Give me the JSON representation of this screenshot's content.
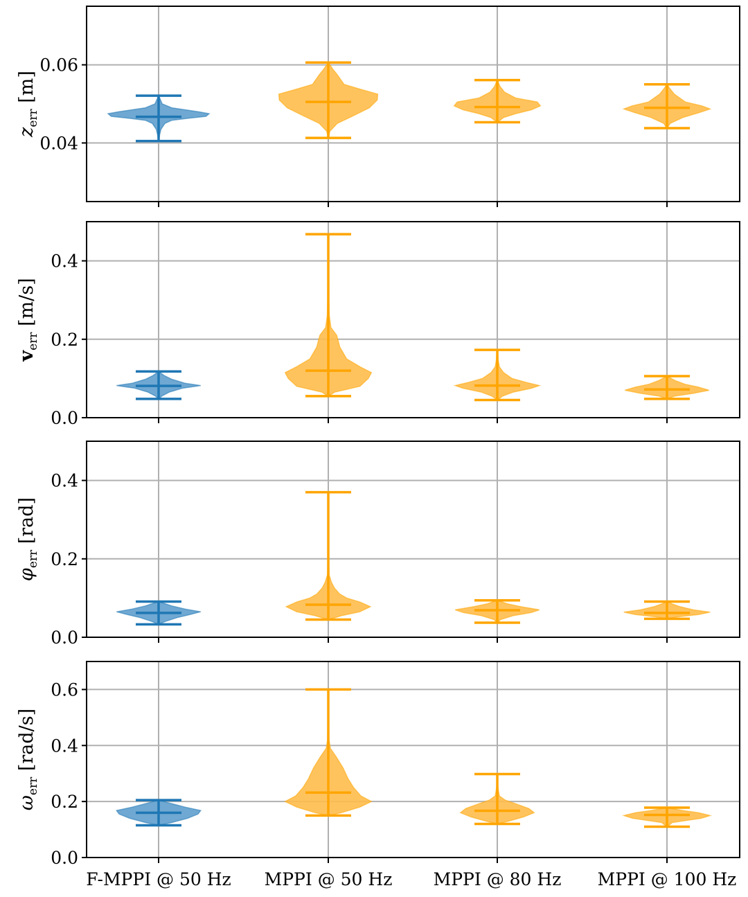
{
  "colors": {
    "fmppi": "#1f77b4",
    "fmppi_fill": "#5f9fcd",
    "mppi": "#ffa500",
    "mppi_fill": "#ffbd4d",
    "grid": "#b0b0b0",
    "axis": "#000000"
  },
  "chart_data": [
    {
      "type": "violin",
      "ylabel": "z_err [m]",
      "ylabel_main": "z",
      "ylabel_sub": "err",
      "ylabel_unit": "[m]",
      "ylabel_style": "italic",
      "ylim": [
        0.025,
        0.075
      ],
      "yticks": [
        0.04,
        0.06
      ],
      "ytick_labels": [
        "0.04",
        "0.06"
      ],
      "grid": true,
      "categories": [
        "F-MPPI @ 50 Hz",
        "MPPI @ 50 Hz",
        "MPPI @ 80 Hz",
        "MPPI @ 100 Hz"
      ],
      "series": [
        {
          "min": 0.0405,
          "mean": 0.0467,
          "max": 0.0521,
          "color": "fmppi",
          "profile": [
            [
              0.0405,
              0.004
            ],
            [
              0.042,
              0.018
            ],
            [
              0.0435,
              0.045
            ],
            [
              0.045,
              0.12
            ],
            [
              0.0458,
              0.25
            ],
            [
              0.0463,
              0.55
            ],
            [
              0.0468,
              0.9
            ],
            [
              0.0475,
              0.96
            ],
            [
              0.048,
              0.75
            ],
            [
              0.049,
              0.25
            ],
            [
              0.05,
              0.07
            ],
            [
              0.0512,
              0.03
            ],
            [
              0.0521,
              0.004
            ]
          ]
        },
        {
          "min": 0.0413,
          "mean": 0.0505,
          "max": 0.0606,
          "color": "mppi",
          "profile": [
            [
              0.0413,
              0.004
            ],
            [
              0.043,
              0.03
            ],
            [
              0.045,
              0.17
            ],
            [
              0.047,
              0.48
            ],
            [
              0.049,
              0.78
            ],
            [
              0.051,
              0.93
            ],
            [
              0.0525,
              0.94
            ],
            [
              0.0538,
              0.6
            ],
            [
              0.055,
              0.3
            ],
            [
              0.0575,
              0.17
            ],
            [
              0.059,
              0.08
            ],
            [
              0.0606,
              0.004
            ]
          ]
        },
        {
          "min": 0.0453,
          "mean": 0.0492,
          "max": 0.0561,
          "color": "mppi",
          "profile": [
            [
              0.0453,
              0.004
            ],
            [
              0.0465,
              0.12
            ],
            [
              0.0475,
              0.35
            ],
            [
              0.0485,
              0.65
            ],
            [
              0.0495,
              0.82
            ],
            [
              0.0505,
              0.76
            ],
            [
              0.0515,
              0.35
            ],
            [
              0.053,
              0.14
            ],
            [
              0.0545,
              0.05
            ],
            [
              0.0561,
              0.004
            ]
          ]
        },
        {
          "min": 0.0438,
          "mean": 0.049,
          "max": 0.055,
          "color": "mppi",
          "profile": [
            [
              0.0438,
              0.004
            ],
            [
              0.045,
              0.06
            ],
            [
              0.0465,
              0.3
            ],
            [
              0.0478,
              0.62
            ],
            [
              0.0487,
              0.82
            ],
            [
              0.0495,
              0.66
            ],
            [
              0.0505,
              0.35
            ],
            [
              0.0525,
              0.14
            ],
            [
              0.054,
              0.05
            ],
            [
              0.055,
              0.004
            ]
          ]
        }
      ]
    },
    {
      "type": "violin",
      "ylabel": "v_err [m/s]",
      "ylabel_main": "v",
      "ylabel_sub": "err",
      "ylabel_unit": "[m/s]",
      "ylabel_style": "bold",
      "ylim": [
        0.0,
        0.5
      ],
      "yticks": [
        0.0,
        0.2,
        0.4
      ],
      "ytick_labels": [
        "0.0",
        "0.2",
        "0.4"
      ],
      "grid": true,
      "categories": [
        "F-MPPI @ 50 Hz",
        "MPPI @ 50 Hz",
        "MPPI @ 80 Hz",
        "MPPI @ 100 Hz"
      ],
      "series": [
        {
          "min": 0.048,
          "mean": 0.081,
          "max": 0.118,
          "color": "fmppi",
          "profile": [
            [
              0.048,
              0.004
            ],
            [
              0.055,
              0.06
            ],
            [
              0.065,
              0.2
            ],
            [
              0.075,
              0.45
            ],
            [
              0.082,
              0.8
            ],
            [
              0.088,
              0.5
            ],
            [
              0.098,
              0.25
            ],
            [
              0.108,
              0.1
            ],
            [
              0.118,
              0.004
            ]
          ]
        },
        {
          "min": 0.055,
          "mean": 0.12,
          "max": 0.468,
          "color": "mppi",
          "profile": [
            [
              0.055,
              0.004
            ],
            [
              0.065,
              0.12
            ],
            [
              0.08,
              0.6
            ],
            [
              0.1,
              0.76
            ],
            [
              0.115,
              0.82
            ],
            [
              0.13,
              0.6
            ],
            [
              0.15,
              0.35
            ],
            [
              0.18,
              0.22
            ],
            [
              0.21,
              0.16
            ],
            [
              0.23,
              0.05
            ],
            [
              0.26,
              0.02
            ],
            [
              0.3,
              0.012
            ],
            [
              0.4,
              0.008
            ],
            [
              0.468,
              0.004
            ]
          ]
        },
        {
          "min": 0.045,
          "mean": 0.082,
          "max": 0.173,
          "color": "mppi",
          "profile": [
            [
              0.045,
              0.004
            ],
            [
              0.055,
              0.1
            ],
            [
              0.065,
              0.3
            ],
            [
              0.075,
              0.65
            ],
            [
              0.082,
              0.8
            ],
            [
              0.09,
              0.55
            ],
            [
              0.1,
              0.28
            ],
            [
              0.115,
              0.12
            ],
            [
              0.13,
              0.04
            ],
            [
              0.15,
              0.015
            ],
            [
              0.173,
              0.004
            ]
          ]
        },
        {
          "min": 0.048,
          "mean": 0.072,
          "max": 0.106,
          "color": "mppi",
          "profile": [
            [
              0.048,
              0.004
            ],
            [
              0.055,
              0.15
            ],
            [
              0.062,
              0.5
            ],
            [
              0.07,
              0.8
            ],
            [
              0.078,
              0.6
            ],
            [
              0.085,
              0.35
            ],
            [
              0.095,
              0.15
            ],
            [
              0.106,
              0.004
            ]
          ]
        }
      ]
    },
    {
      "type": "violin",
      "ylabel": "φ_err [rad]",
      "ylabel_main": "φ",
      "ylabel_sub": "err",
      "ylabel_unit": "[rad]",
      "ylabel_style": "italic",
      "ylim": [
        0.0,
        0.5
      ],
      "yticks": [
        0.0,
        0.2,
        0.4
      ],
      "ytick_labels": [
        "0.0",
        "0.2",
        "0.4"
      ],
      "grid": true,
      "categories": [
        "F-MPPI @ 50 Hz",
        "MPPI @ 50 Hz",
        "MPPI @ 80 Hz",
        "MPPI @ 100 Hz"
      ],
      "series": [
        {
          "min": 0.033,
          "mean": 0.062,
          "max": 0.091,
          "color": "fmppi",
          "profile": [
            [
              0.033,
              0.004
            ],
            [
              0.04,
              0.12
            ],
            [
              0.05,
              0.35
            ],
            [
              0.058,
              0.6
            ],
            [
              0.065,
              0.8
            ],
            [
              0.072,
              0.5
            ],
            [
              0.08,
              0.25
            ],
            [
              0.091,
              0.004
            ]
          ]
        },
        {
          "min": 0.045,
          "mean": 0.083,
          "max": 0.37,
          "color": "mppi",
          "profile": [
            [
              0.045,
              0.004
            ],
            [
              0.055,
              0.25
            ],
            [
              0.065,
              0.6
            ],
            [
              0.078,
              0.8
            ],
            [
              0.09,
              0.6
            ],
            [
              0.1,
              0.35
            ],
            [
              0.11,
              0.22
            ],
            [
              0.125,
              0.12
            ],
            [
              0.14,
              0.06
            ],
            [
              0.16,
              0.015
            ],
            [
              0.2,
              0.008
            ],
            [
              0.3,
              0.006
            ],
            [
              0.37,
              0.004
            ]
          ]
        },
        {
          "min": 0.037,
          "mean": 0.069,
          "max": 0.094,
          "color": "mppi",
          "profile": [
            [
              0.037,
              0.004
            ],
            [
              0.045,
              0.06
            ],
            [
              0.055,
              0.3
            ],
            [
              0.063,
              0.65
            ],
            [
              0.07,
              0.8
            ],
            [
              0.078,
              0.45
            ],
            [
              0.085,
              0.2
            ],
            [
              0.094,
              0.004
            ]
          ]
        },
        {
          "min": 0.047,
          "mean": 0.062,
          "max": 0.091,
          "color": "mppi",
          "profile": [
            [
              0.047,
              0.004
            ],
            [
              0.052,
              0.2
            ],
            [
              0.058,
              0.6
            ],
            [
              0.064,
              0.82
            ],
            [
              0.07,
              0.5
            ],
            [
              0.078,
              0.25
            ],
            [
              0.085,
              0.1
            ],
            [
              0.091,
              0.004
            ]
          ]
        }
      ]
    },
    {
      "type": "violin",
      "ylabel": "ω_err [rad/s]",
      "ylabel_main": "ω",
      "ylabel_sub": "err",
      "ylabel_unit": "[rad/s]",
      "ylabel_style": "italic",
      "ylim": [
        0.0,
        0.7
      ],
      "yticks": [
        0.0,
        0.2,
        0.4,
        0.6
      ],
      "ytick_labels": [
        "0.0",
        "0.2",
        "0.4",
        "0.6"
      ],
      "grid": true,
      "categories": [
        "F-MPPI @ 50 Hz",
        "MPPI @ 50 Hz",
        "MPPI @ 80 Hz",
        "MPPI @ 100 Hz"
      ],
      "series": [
        {
          "min": 0.115,
          "mean": 0.16,
          "max": 0.205,
          "color": "fmppi",
          "profile": [
            [
              0.115,
              0.004
            ],
            [
              0.125,
              0.25
            ],
            [
              0.14,
              0.55
            ],
            [
              0.155,
              0.75
            ],
            [
              0.168,
              0.8
            ],
            [
              0.18,
              0.5
            ],
            [
              0.195,
              0.2
            ],
            [
              0.205,
              0.004
            ]
          ]
        },
        {
          "min": 0.15,
          "mean": 0.232,
          "max": 0.6,
          "color": "mppi",
          "profile": [
            [
              0.15,
              0.004
            ],
            [
              0.16,
              0.25
            ],
            [
              0.18,
              0.6
            ],
            [
              0.2,
              0.82
            ],
            [
              0.22,
              0.62
            ],
            [
              0.25,
              0.48
            ],
            [
              0.28,
              0.38
            ],
            [
              0.32,
              0.28
            ],
            [
              0.36,
              0.15
            ],
            [
              0.39,
              0.04
            ],
            [
              0.42,
              0.015
            ],
            [
              0.5,
              0.008
            ],
            [
              0.6,
              0.004
            ]
          ]
        },
        {
          "min": 0.12,
          "mean": 0.167,
          "max": 0.298,
          "color": "mppi",
          "profile": [
            [
              0.12,
              0.004
            ],
            [
              0.13,
              0.22
            ],
            [
              0.145,
              0.5
            ],
            [
              0.16,
              0.7
            ],
            [
              0.175,
              0.6
            ],
            [
              0.19,
              0.38
            ],
            [
              0.205,
              0.15
            ],
            [
              0.22,
              0.04
            ],
            [
              0.25,
              0.012
            ],
            [
              0.298,
              0.004
            ]
          ]
        },
        {
          "min": 0.11,
          "mean": 0.152,
          "max": 0.178,
          "color": "mppi",
          "profile": [
            [
              0.11,
              0.004
            ],
            [
              0.125,
              0.1
            ],
            [
              0.14,
              0.65
            ],
            [
              0.15,
              0.82
            ],
            [
              0.16,
              0.6
            ],
            [
              0.168,
              0.3
            ],
            [
              0.178,
              0.004
            ]
          ]
        }
      ]
    }
  ]
}
